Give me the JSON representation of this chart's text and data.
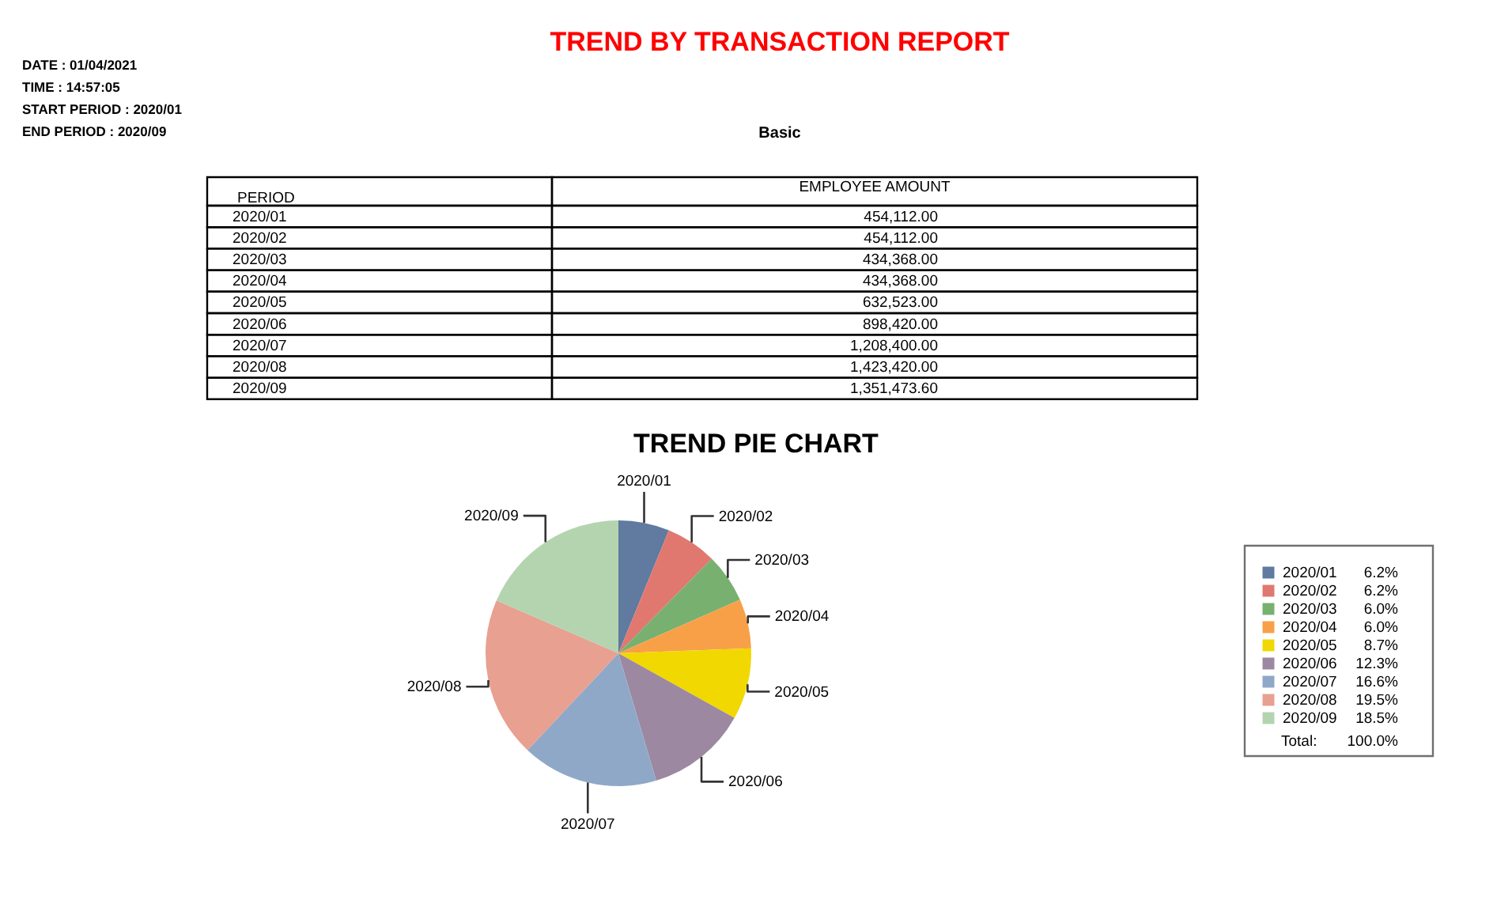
{
  "chart_data": [
    {
      "type": "other",
      "title": "TREND BY TRANSACTION REPORT",
      "subtitle": "Basic",
      "annotations": [
        "DATE : 01/04/2021",
        "TIME : 14:57:05",
        "START PERIOD : 2020/01",
        "END PERIOD : 2020/09"
      ],
      "xlabel": "PERIOD",
      "ylabel": "EMPLOYEE AMOUNT",
      "categories": [
        "2020/01",
        "2020/02",
        "2020/03",
        "2020/04",
        "2020/05",
        "2020/06",
        "2020/07",
        "2020/08",
        "2020/09"
      ],
      "values": [
        454112,
        454112,
        434368,
        434368,
        632523,
        898420,
        1208400,
        1423420,
        1351473.6
      ],
      "value_labels": [
        "454,112.00",
        "454,112.00",
        "434,368.00",
        "434,368.00",
        "632,523.00",
        "898,420.00",
        "1,208,400.00",
        "1,423,420.00",
        "1,351,473.60"
      ]
    },
    {
      "type": "pie",
      "title": "TREND  PIE CHART",
      "categories": [
        "2020/01",
        "2020/02",
        "2020/03",
        "2020/04",
        "2020/05",
        "2020/06",
        "2020/07",
        "2020/08",
        "2020/09"
      ],
      "values": [
        6.2,
        6.2,
        6.0,
        6.0,
        8.7,
        12.3,
        16.6,
        19.5,
        18.5
      ],
      "colors": [
        "#607aa0",
        "#e07870",
        "#78b070",
        "#f8a048",
        "#f0d800",
        "#9c88a0",
        "#90a8c8",
        "#e8a090",
        "#b4d4b0"
      ],
      "value_labels": [
        "6.2%",
        "6.2%",
        "6.0%",
        "6.0%",
        "8.7%",
        "12.3%",
        "16.6%",
        "19.5%",
        "18.5%"
      ],
      "legend": "right",
      "annotations": [
        "Total:",
        "100.0%"
      ]
    }
  ]
}
